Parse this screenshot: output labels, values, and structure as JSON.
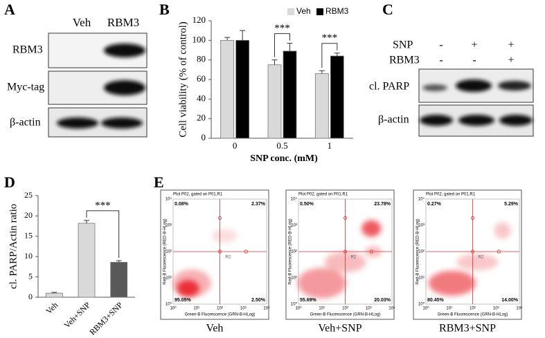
{
  "panels": {
    "a": "A",
    "b": "B",
    "c": "C",
    "d": "D",
    "e": "E"
  },
  "blot_a": {
    "columns": [
      "Veh",
      "RBM3"
    ],
    "rows": [
      "RBM3",
      "Myc-tag",
      "β-actin"
    ]
  },
  "blot_c": {
    "conditions": [
      {
        "label": "SNP",
        "signs": [
          "-",
          "+",
          "+"
        ]
      },
      {
        "label": "RBM3",
        "signs": [
          "-",
          "-",
          "+"
        ]
      }
    ],
    "rows": [
      "cl. PARP",
      "β-actin"
    ]
  },
  "chart_data": [
    {
      "type": "bar",
      "y_label": "Cell viability (% of control)",
      "x_label": "SNP conc. (mM)",
      "categories": [
        "0",
        "0.5",
        "1"
      ],
      "series": [
        {
          "name": "Veh",
          "color": "#d9d9d9",
          "values": [
            100,
            75,
            66
          ],
          "errors": [
            3,
            5,
            3
          ]
        },
        {
          "name": "RBM3",
          "color": "#000000",
          "values": [
            100,
            89,
            84
          ],
          "errors": [
            10,
            8,
            3
          ]
        }
      ],
      "ylim": [
        0,
        120
      ],
      "yticks": [
        0,
        20,
        40,
        60,
        80,
        100,
        120
      ],
      "grid": false,
      "legend": "top",
      "annotations": [
        "***",
        "***"
      ]
    },
    {
      "type": "bar",
      "y_label": "cl. PARP/Actin ratio",
      "categories": [
        "Veh",
        "Veh+SNP",
        "RBM3+SNP"
      ],
      "values": [
        1,
        18.2,
        8.6
      ],
      "errors": [
        0.2,
        0.7,
        0.4
      ],
      "colors": [
        "#d9d9d9",
        "#d9d9d9",
        "#595959"
      ],
      "ylim": [
        0,
        25
      ],
      "yticks": [
        0,
        5,
        10,
        15,
        20,
        25
      ],
      "grid": false,
      "annotations": [
        "***"
      ]
    }
  ],
  "flow": {
    "header": "Plot P02, gated on P01.R1",
    "y_label": "Red-B Fluorescence (RED-B-HLog)",
    "x_label": "Green-B Fluorescence (GRN-B-HLog)",
    "ticks": [
      "10⁰",
      "10¹",
      "10²",
      "10³",
      "10⁴"
    ],
    "gate": "R2",
    "plots": [
      {
        "caption": "Veh",
        "quadrants": [
          "0.08%",
          "2.37%",
          "95.05%",
          "2.50%"
        ]
      },
      {
        "caption": "Veh+SNP",
        "quadrants": [
          "0.50%",
          "23.78%",
          "55.69%",
          "20.03%"
        ]
      },
      {
        "caption": "RBM3+SNP",
        "quadrants": [
          "0.27%",
          "5.29%",
          "80.45%",
          "14.00%"
        ]
      }
    ]
  }
}
